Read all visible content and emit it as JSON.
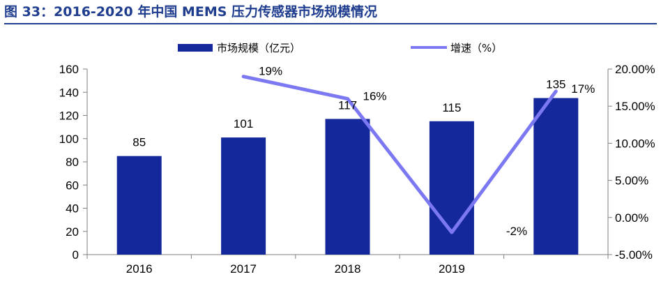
{
  "title": "图 33：2016-2020 年中国 MEMS 压力传感器市场规模情况",
  "colors": {
    "title": "#1f3d8f",
    "bar": "#14279b",
    "line": "#7b78f2"
  },
  "chart_data": {
    "type": "bar",
    "categories": [
      "2016",
      "2017",
      "2018",
      "2019",
      ""
    ],
    "ylim": [
      0,
      160
    ],
    "y_ticks": [
      "0",
      "20",
      "40",
      "60",
      "80",
      "100",
      "120",
      "140",
      "160"
    ],
    "y2lim": [
      -5,
      20
    ],
    "y2_ticks": [
      "-5.00%",
      "0.00%",
      "5.00%",
      "10.00%",
      "15.00%",
      "20.00%"
    ],
    "legend_position": "top",
    "grid": false,
    "series": [
      {
        "name": "市场规模（亿元）",
        "type": "bar",
        "axis": "left",
        "values": [
          85,
          101,
          117,
          115,
          135
        ],
        "labels": [
          "85",
          "101",
          "117",
          "115",
          "135"
        ]
      },
      {
        "name": "增速（%）",
        "type": "line",
        "axis": "right",
        "values": [
          null,
          19,
          16,
          -2,
          17
        ],
        "labels": [
          "",
          "19%",
          "16%",
          "-2%",
          "17%"
        ]
      }
    ]
  }
}
